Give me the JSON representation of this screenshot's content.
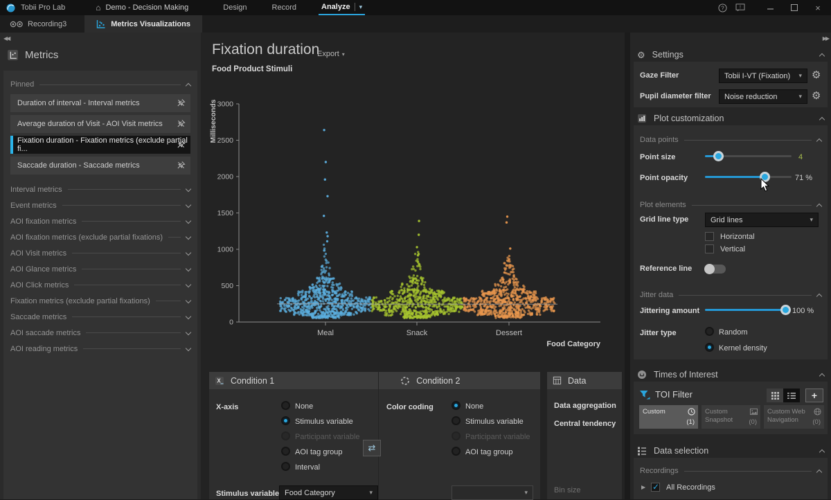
{
  "title_bar": {
    "app_name": "Tobii Pro Lab",
    "project_name": "Demo - Decision Making",
    "tabs": [
      {
        "label": "Design"
      },
      {
        "label": "Record"
      },
      {
        "label": "Analyze"
      }
    ],
    "active_tab": "Analyze"
  },
  "tab_bar": {
    "recording_tab": "Recording3",
    "metrics_tab": "Metrics Visualizations"
  },
  "metrics_panel": {
    "title": "Metrics",
    "pinned_header": "Pinned",
    "pinned_items": [
      {
        "label": "Duration of interval - Interval metrics"
      },
      {
        "label": "Average duration of Visit - AOI Visit metrics"
      },
      {
        "label": "Fixation duration - Fixation metrics (exclude partial fi...",
        "selected": true
      },
      {
        "label": "Saccade duration - Saccade metrics"
      }
    ],
    "categories": [
      {
        "label": "Interval metrics"
      },
      {
        "label": "Event metrics"
      },
      {
        "label": "AOI fixation metrics"
      },
      {
        "label": "AOI fixation metrics (exclude partial fixations)"
      },
      {
        "label": "AOI Visit metrics"
      },
      {
        "label": "AOI Glance metrics"
      },
      {
        "label": "AOI Click metrics"
      },
      {
        "label": "Fixation metrics (exclude partial fixations)"
      },
      {
        "label": "Saccade metrics"
      },
      {
        "label": "AOI saccade metrics"
      },
      {
        "label": "AOI reading metrics"
      }
    ]
  },
  "chart_header": {
    "title": "Fixation duration",
    "export_label": "Export",
    "subtitle": "Food Product Stimuli"
  },
  "chart_data": {
    "type": "scatter",
    "variant": "beeswarm-kernel-density",
    "title": "Fixation duration",
    "subtitle": "Food Product Stimuli",
    "ylabel": "Milliseconds",
    "xlabel": "Food Category",
    "ylim": [
      0,
      3000
    ],
    "yticks": [
      0,
      500,
      1000,
      1500,
      2000,
      2500,
      3000
    ],
    "grid": false,
    "point_opacity": 0.71,
    "median_line_ms": 250,
    "categories": [
      "Meal",
      "Snack",
      "Dessert"
    ],
    "series": [
      {
        "name": "Meal",
        "color": "#5caede",
        "n_points": 720,
        "median_ms": 250,
        "bulk_range_ms": [
          55,
          1100
        ],
        "outliers_ms": [
          1110,
          1180,
          1230,
          1460,
          1730,
          1960,
          2200,
          2640
        ],
        "seed": 11
      },
      {
        "name": "Snack",
        "color": "#a6c42f",
        "n_points": 700,
        "median_ms": 245,
        "bulk_range_ms": [
          55,
          980
        ],
        "outliers_ms": [
          1030,
          1200,
          1390
        ],
        "seed": 22
      },
      {
        "name": "Dessert",
        "color": "#e9974d",
        "n_points": 700,
        "median_ms": 245,
        "bulk_range_ms": [
          55,
          1010
        ],
        "outliers_ms": [
          1010,
          1370,
          1450
        ],
        "seed": 33
      }
    ]
  },
  "condition1": {
    "title": "Condition 1",
    "row_label": "X-axis",
    "options": [
      {
        "label": "None"
      },
      {
        "label": "Stimulus variable",
        "selected": true
      },
      {
        "label": "Participant variable",
        "disabled": true
      },
      {
        "label": "AOI tag group"
      },
      {
        "label": "Interval"
      }
    ],
    "stimulus_label": "Stimulus variable",
    "stimulus_value": "Food Category"
  },
  "condition2": {
    "title": "Condition 2",
    "row_label": "Color coding",
    "options": [
      {
        "label": "None",
        "selected": true
      },
      {
        "label": "Stimulus variable"
      },
      {
        "label": "Participant variable",
        "disabled": true
      },
      {
        "label": "AOI tag group"
      }
    ]
  },
  "data_panel": {
    "title": "Data",
    "row1": "Data aggregation",
    "row2": "Central tendency",
    "row3": "Bin size"
  },
  "settings": {
    "title": "Settings",
    "gaze_filter_label": "Gaze Filter",
    "gaze_filter_value": "Tobii I-VT (Fixation)",
    "pupil_filter_label": "Pupil diameter filter",
    "pupil_filter_value": "Noise reduction"
  },
  "plot_customization": {
    "title": "Plot customization",
    "data_points_header": "Data points",
    "point_size_label": "Point size",
    "point_size_value": "4",
    "point_opacity_label": "Point opacity",
    "point_opacity_value": "71 %",
    "plot_elements_header": "Plot elements",
    "grid_line_type_label": "Grid line type",
    "grid_line_type_value": "Grid lines",
    "horizontal_label": "Horizontal",
    "vertical_label": "Vertical",
    "reference_line_label": "Reference line",
    "jitter_data_header": "Jitter data",
    "jittering_amount_label": "Jittering amount",
    "jittering_amount_value": "100 %",
    "jitter_type_label": "Jitter type",
    "jitter_options": [
      {
        "label": "Random"
      },
      {
        "label": "Kernel density",
        "selected": true
      }
    ]
  },
  "times_of_interest": {
    "title": "Times of Interest",
    "filter_label": "TOI Filter",
    "cards": [
      {
        "label": "Custom",
        "count": "(1)",
        "selected": true
      },
      {
        "label": "Custom Snapshot",
        "count": "(0)"
      },
      {
        "label": "Custom Web Navigation",
        "count": "(0)"
      }
    ]
  },
  "data_selection": {
    "title": "Data selection",
    "recordings_header": "Recordings",
    "all_recordings_label": "All Recordings"
  },
  "colors": {
    "accent": "#29a8e0",
    "meal": "#5caede",
    "snack": "#a6c42f",
    "dessert": "#e9974d",
    "point_size_value_color": "#a9bf4f"
  }
}
